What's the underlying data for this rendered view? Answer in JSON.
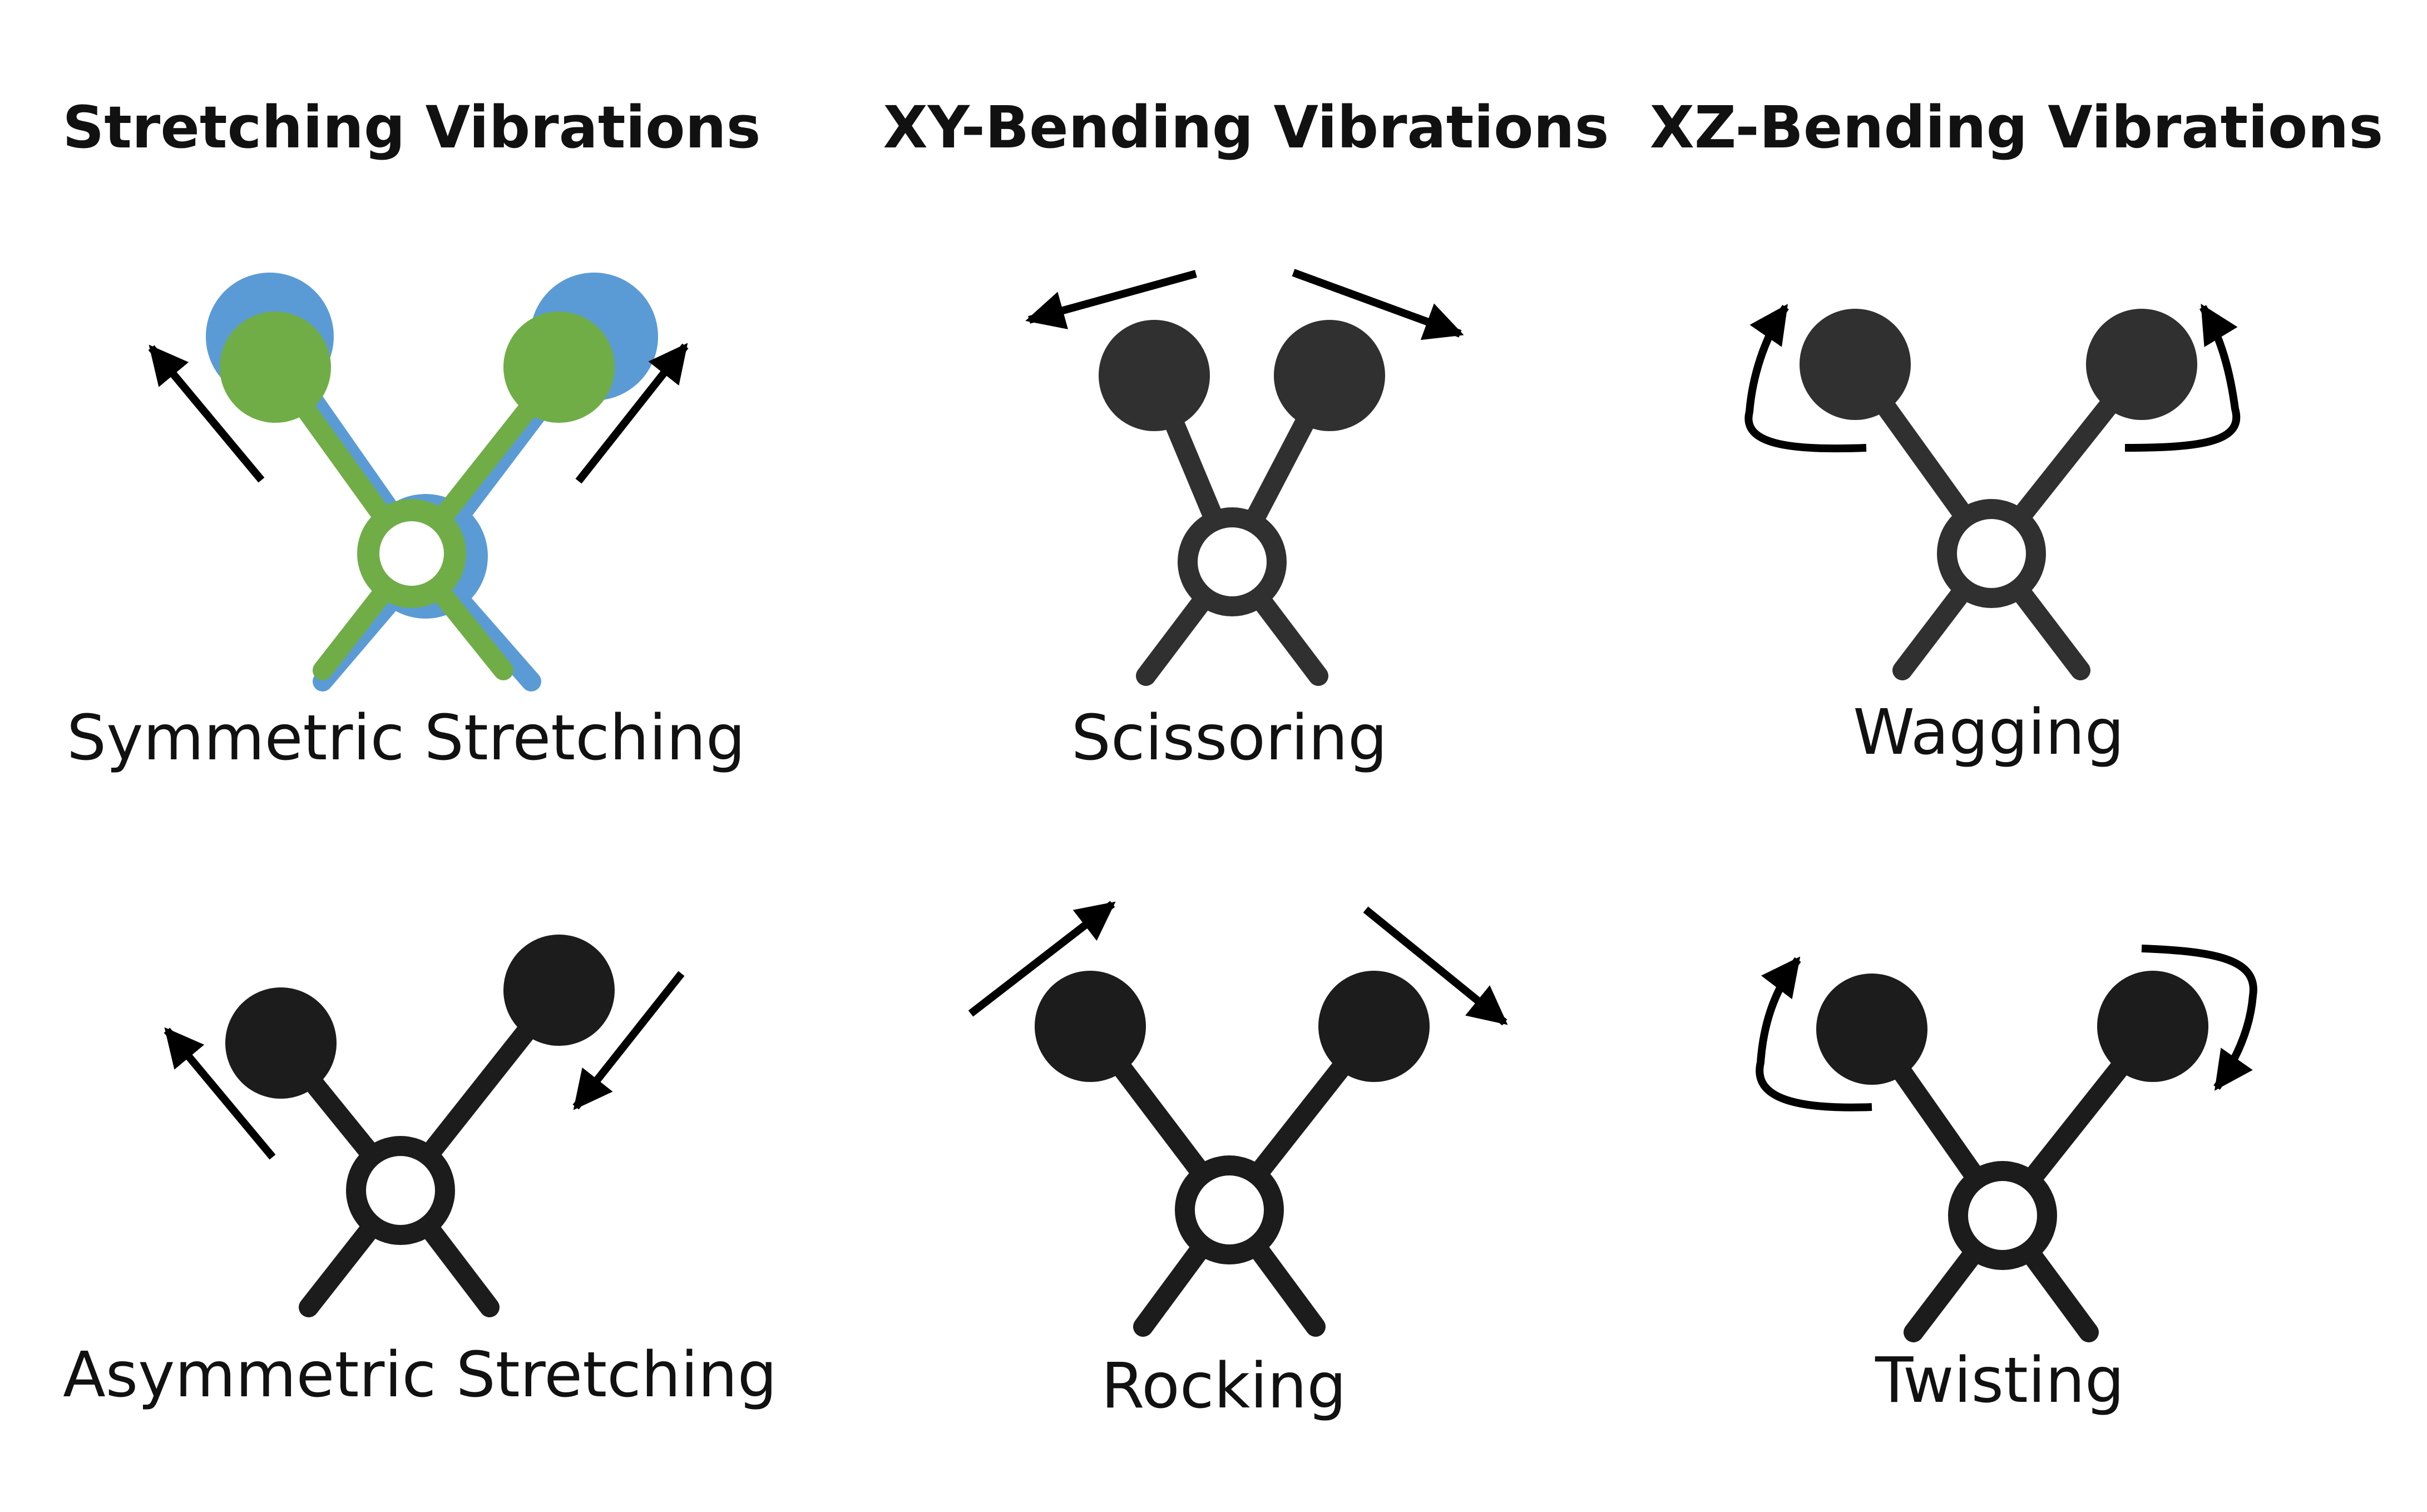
{
  "headings": {
    "stretching": "Stretching Vibrations",
    "xy_bending": "XY-Bending Vibrations",
    "xz_bending": "XZ-Bending Vibrations"
  },
  "captions": {
    "symmetric_stretching": "Symmetric Stretching",
    "asymmetric_stretching": "Asymmetric Stretching",
    "scissoring": "Scissoring",
    "rocking": "Rocking",
    "wagging": "Wagging",
    "twisting": "Twisting"
  },
  "colors": {
    "atom_dark": "#303030",
    "atom_black": "#1c1c1c",
    "green_state": "#70ad47",
    "blue_state": "#5b9bd5",
    "arrow": "#000000"
  }
}
